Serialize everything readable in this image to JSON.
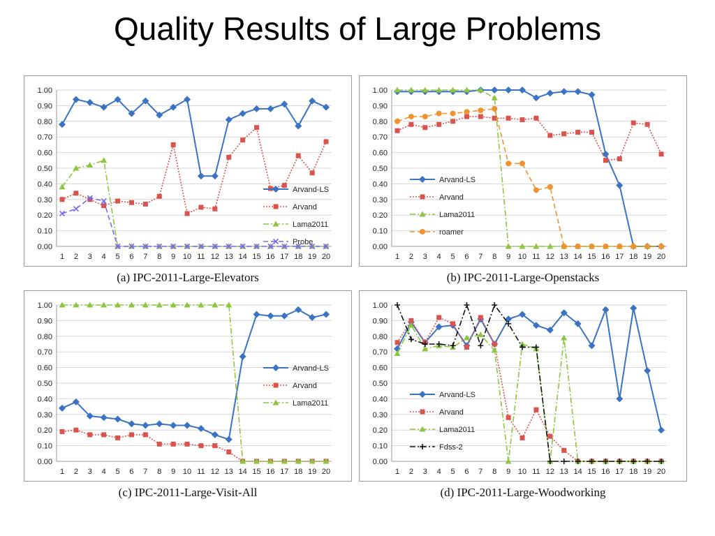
{
  "title": "Quality Results of Large Problems",
  "colors": {
    "arvand_ls": "#3a72c4",
    "arvand": "#d9534f",
    "lama2011": "#8cc63f",
    "probe": "#7b68ee",
    "roamer": "#f0922e",
    "fdss2": "#111111"
  },
  "chart_data": [
    {
      "type": "line",
      "caption": "(a) IPC-2011-Large-Elevators",
      "x": [
        1,
        2,
        3,
        4,
        5,
        6,
        7,
        8,
        9,
        10,
        11,
        12,
        13,
        14,
        15,
        16,
        17,
        18,
        19,
        20
      ],
      "ylim": [
        0,
        1
      ],
      "yticks": [
        "0.00",
        "0.10",
        "0.20",
        "0.30",
        "0.40",
        "0.50",
        "0.60",
        "0.70",
        "0.80",
        "0.90",
        "1.00"
      ],
      "legend_position": "right",
      "series": [
        {
          "name": "Arvand-LS",
          "style": "solid",
          "marker": "diamond",
          "color": "#3a72c4",
          "values": [
            0.78,
            0.94,
            0.92,
            0.89,
            0.94,
            0.85,
            0.93,
            0.84,
            0.89,
            0.94,
            0.45,
            0.45,
            0.81,
            0.85,
            0.88,
            0.88,
            0.91,
            0.77,
            0.93,
            0.89
          ]
        },
        {
          "name": "Arvand",
          "style": "dotted",
          "marker": "square",
          "color": "#d9534f",
          "values": [
            0.3,
            0.34,
            0.3,
            0.26,
            0.29,
            0.28,
            0.27,
            0.32,
            0.65,
            0.21,
            0.25,
            0.24,
            0.57,
            0.68,
            0.76,
            0.37,
            0.39,
            0.58,
            0.47,
            0.67
          ]
        },
        {
          "name": "Lama2011",
          "style": "dashdot",
          "marker": "triangle",
          "color": "#8cc63f",
          "values": [
            0.38,
            0.5,
            0.52,
            0.55,
            0,
            0,
            0,
            0,
            0,
            0,
            0,
            0,
            0,
            0,
            0,
            0,
            0,
            0,
            0,
            0
          ]
        },
        {
          "name": "Probe",
          "style": "dashed",
          "marker": "x",
          "color": "#7b68ee",
          "values": [
            0.21,
            0.24,
            0.31,
            0.29,
            0,
            0,
            0,
            0,
            0,
            0,
            0,
            0,
            0,
            0,
            0,
            0,
            0,
            0,
            0,
            0
          ]
        }
      ]
    },
    {
      "type": "line",
      "caption": "(b) IPC-2011-Large-Openstacks",
      "x": [
        1,
        2,
        3,
        4,
        5,
        6,
        7,
        8,
        9,
        10,
        11,
        12,
        13,
        14,
        15,
        16,
        17,
        18,
        19,
        20
      ],
      "ylim": [
        0,
        1
      ],
      "yticks": [
        "0.00",
        "0.10",
        "0.20",
        "0.30",
        "0.40",
        "0.50",
        "0.60",
        "0.70",
        "0.80",
        "0.90",
        "1.00"
      ],
      "legend_position": "left",
      "series": [
        {
          "name": "Arvand-LS",
          "style": "solid",
          "marker": "diamond",
          "color": "#3a72c4",
          "values": [
            0.99,
            0.99,
            0.99,
            0.99,
            0.99,
            0.99,
            1.0,
            1.0,
            1.0,
            1.0,
            0.95,
            0.98,
            0.99,
            0.99,
            0.97,
            0.59,
            0.39,
            0,
            0,
            0
          ]
        },
        {
          "name": "Arvand",
          "style": "dotted",
          "marker": "square",
          "color": "#d9534f",
          "values": [
            0.74,
            0.78,
            0.76,
            0.78,
            0.8,
            0.83,
            0.83,
            0.82,
            0.82,
            0.81,
            0.82,
            0.71,
            0.72,
            0.73,
            0.73,
            0.55,
            0.56,
            0.79,
            0.78,
            0.59
          ]
        },
        {
          "name": "Lama2011",
          "style": "dashdot",
          "marker": "triangle",
          "color": "#8cc63f",
          "values": [
            1.0,
            1.0,
            1.0,
            1.0,
            1.0,
            1.0,
            1.0,
            0.95,
            0,
            0,
            0,
            0,
            0,
            0,
            0,
            0,
            0,
            0,
            0,
            0
          ]
        },
        {
          "name": "roamer",
          "style": "dashed",
          "marker": "circle",
          "color": "#f0922e",
          "values": [
            0.8,
            0.83,
            0.83,
            0.85,
            0.85,
            0.86,
            0.87,
            0.88,
            0.53,
            0.53,
            0.36,
            0.38,
            0,
            0,
            0,
            0,
            0,
            0,
            0,
            0
          ]
        }
      ]
    },
    {
      "type": "line",
      "caption": "(c) IPC-2011-Large-Visit-All",
      "x": [
        1,
        2,
        3,
        4,
        5,
        6,
        7,
        8,
        9,
        10,
        11,
        12,
        13,
        14,
        15,
        16,
        17,
        18,
        19,
        20
      ],
      "ylim": [
        0,
        1
      ],
      "yticks": [
        "0.00",
        "0.10",
        "0.20",
        "0.30",
        "0.40",
        "0.50",
        "0.60",
        "0.70",
        "0.80",
        "0.90",
        "1.00"
      ],
      "legend_position": "right",
      "series": [
        {
          "name": "Arvand-LS",
          "style": "solid",
          "marker": "diamond",
          "color": "#3a72c4",
          "values": [
            0.34,
            0.38,
            0.29,
            0.28,
            0.27,
            0.24,
            0.23,
            0.24,
            0.23,
            0.23,
            0.21,
            0.17,
            0.14,
            0.67,
            0.94,
            0.93,
            0.93,
            0.97,
            0.92,
            0.94
          ]
        },
        {
          "name": "Arvand",
          "style": "dotted",
          "marker": "square",
          "color": "#d9534f",
          "values": [
            0.19,
            0.2,
            0.17,
            0.17,
            0.15,
            0.17,
            0.17,
            0.11,
            0.11,
            0.11,
            0.1,
            0.1,
            0.06,
            0,
            0,
            0,
            0,
            0,
            0,
            0
          ]
        },
        {
          "name": "Lama2011",
          "style": "dashdot",
          "marker": "triangle",
          "color": "#8cc63f",
          "values": [
            1.0,
            1.0,
            1.0,
            1.0,
            1.0,
            1.0,
            1.0,
            1.0,
            1.0,
            1.0,
            1.0,
            1.0,
            1.0,
            0,
            0,
            0,
            0,
            0,
            0,
            0
          ]
        }
      ]
    },
    {
      "type": "line",
      "caption": "(d) IPC-2011-Large-Woodworking",
      "x": [
        1,
        2,
        3,
        4,
        5,
        6,
        7,
        8,
        9,
        10,
        11,
        12,
        13,
        14,
        15,
        16,
        17,
        18,
        19,
        20
      ],
      "ylim": [
        0,
        1
      ],
      "yticks": [
        "0.00",
        "0.10",
        "0.20",
        "0.30",
        "0.40",
        "0.50",
        "0.60",
        "0.70",
        "0.80",
        "0.90",
        "1.00"
      ],
      "legend_position": "left",
      "series": [
        {
          "name": "Arvand-LS",
          "style": "solid",
          "marker": "diamond",
          "color": "#3a72c4",
          "values": [
            0.72,
            0.89,
            0.76,
            0.86,
            0.87,
            0.74,
            0.91,
            0.75,
            0.91,
            0.94,
            0.87,
            0.84,
            0.95,
            0.88,
            0.74,
            0.97,
            0.4,
            0.98,
            0.58,
            0.2
          ]
        },
        {
          "name": "Arvand",
          "style": "dotted",
          "marker": "square",
          "color": "#d9534f",
          "values": [
            0.76,
            0.9,
            0.76,
            0.92,
            0.88,
            0.73,
            0.92,
            0.75,
            0.28,
            0.15,
            0.33,
            0.16,
            0.07,
            0,
            0,
            0,
            0,
            0,
            0,
            0
          ]
        },
        {
          "name": "Lama2011",
          "style": "dashdot",
          "marker": "triangle",
          "color": "#8cc63f",
          "values": [
            0.69,
            0.87,
            0.72,
            0.74,
            0.73,
            0.79,
            0.81,
            0.71,
            0,
            0.75,
            0.72,
            0,
            0.79,
            0,
            0,
            0,
            0,
            0,
            0,
            0
          ]
        },
        {
          "name": "Fdss-2",
          "style": "dashdot",
          "marker": "plus",
          "color": "#111111",
          "values": [
            1.0,
            0.78,
            0.75,
            0.75,
            0.74,
            1.0,
            0.74,
            1.0,
            0.88,
            0.73,
            0.73,
            0,
            0,
            0,
            0,
            0,
            0,
            0,
            0,
            0
          ]
        }
      ]
    }
  ]
}
